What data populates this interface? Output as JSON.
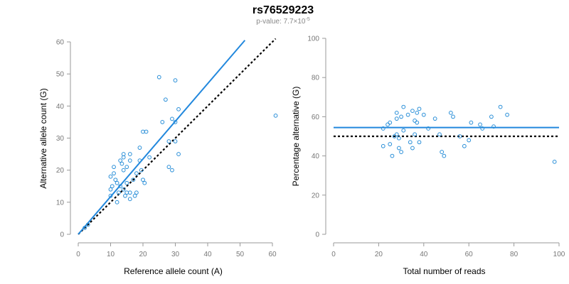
{
  "title": "rs76529223",
  "subtitle": {
    "prefix": "p-value: 7.7×10",
    "exponent": "-5"
  },
  "colors": {
    "points": "#2a8fd8",
    "fit_line": "#2288dd",
    "reference_line": "#000000",
    "axis": "#999999",
    "tick_text": "#777777"
  },
  "chart_data": [
    {
      "type": "scatter",
      "xlabel": "Reference allele count (A)",
      "ylabel": "Alternative allele count (G)",
      "xlim": [
        0,
        60
      ],
      "ylim": [
        0,
        60
      ],
      "xticks": [
        0,
        10,
        20,
        30,
        40,
        50,
        60
      ],
      "yticks": [
        0,
        10,
        20,
        30,
        40,
        50,
        60
      ],
      "grid": false,
      "points": [
        [
          2,
          2
        ],
        [
          3,
          3
        ],
        [
          10,
          12
        ],
        [
          10,
          14
        ],
        [
          10,
          18
        ],
        [
          10.5,
          15
        ],
        [
          11,
          21
        ],
        [
          11,
          19
        ],
        [
          11.5,
          17
        ],
        [
          12,
          10
        ],
        [
          12,
          16
        ],
        [
          12.5,
          13
        ],
        [
          13,
          23
        ],
        [
          13,
          15
        ],
        [
          13.5,
          22
        ],
        [
          14,
          25
        ],
        [
          14,
          24
        ],
        [
          14,
          20
        ],
        [
          14,
          14
        ],
        [
          14.5,
          12
        ],
        [
          15,
          21
        ],
        [
          15,
          16
        ],
        [
          15,
          13
        ],
        [
          16,
          25
        ],
        [
          16,
          23
        ],
        [
          16,
          11
        ],
        [
          16,
          13
        ],
        [
          17,
          17
        ],
        [
          17.5,
          12
        ],
        [
          18,
          13
        ],
        [
          18,
          19
        ],
        [
          19,
          27
        ],
        [
          19,
          23
        ],
        [
          19.5,
          20
        ],
        [
          20,
          32
        ],
        [
          20,
          17
        ],
        [
          20.5,
          16
        ],
        [
          21,
          32
        ],
        [
          22,
          24
        ],
        [
          25,
          49
        ],
        [
          26,
          35
        ],
        [
          27,
          42
        ],
        [
          28,
          29
        ],
        [
          28,
          21
        ],
        [
          29,
          36
        ],
        [
          29,
          20
        ],
        [
          30,
          48
        ],
        [
          30,
          35
        ],
        [
          30,
          29
        ],
        [
          31,
          39
        ],
        [
          31,
          25
        ],
        [
          61,
          37
        ]
      ],
      "fit_line": {
        "x": [
          0,
          51.5
        ],
        "y": [
          0,
          60.5
        ]
      },
      "reference_line": {
        "x": [
          0,
          61
        ],
        "y": [
          0,
          61
        ]
      }
    },
    {
      "type": "scatter",
      "xlabel": "Total number of reads",
      "ylabel": "Percentage alternative (G)",
      "xlim": [
        0,
        100
      ],
      "ylim": [
        0,
        100
      ],
      "xticks": [
        0,
        20,
        40,
        60,
        80,
        100
      ],
      "yticks": [
        0,
        20,
        40,
        60,
        80,
        100
      ],
      "grid": false,
      "points": [
        [
          22,
          45
        ],
        [
          22,
          54
        ],
        [
          24,
          56
        ],
        [
          25,
          57
        ],
        [
          25,
          46
        ],
        [
          26,
          40
        ],
        [
          27,
          50
        ],
        [
          28,
          62
        ],
        [
          28,
          59
        ],
        [
          28,
          51
        ],
        [
          29,
          44
        ],
        [
          29,
          49
        ],
        [
          30,
          60
        ],
        [
          30,
          42
        ],
        [
          31,
          65
        ],
        [
          31,
          53
        ],
        [
          33,
          61
        ],
        [
          34,
          47
        ],
        [
          35,
          63
        ],
        [
          35,
          44
        ],
        [
          36,
          58
        ],
        [
          36,
          51
        ],
        [
          37,
          62
        ],
        [
          37,
          57
        ],
        [
          38,
          64
        ],
        [
          38,
          47
        ],
        [
          40,
          61
        ],
        [
          42,
          54
        ],
        [
          45,
          59
        ],
        [
          47,
          51
        ],
        [
          48,
          42
        ],
        [
          49,
          40
        ],
        [
          52,
          62
        ],
        [
          53,
          60
        ],
        [
          56,
          50
        ],
        [
          58,
          45
        ],
        [
          60,
          48
        ],
        [
          61,
          57
        ],
        [
          65,
          56
        ],
        [
          66,
          54
        ],
        [
          70,
          60
        ],
        [
          71,
          55
        ],
        [
          74,
          65
        ],
        [
          77,
          61
        ],
        [
          98,
          37
        ]
      ],
      "fit_line": {
        "x": [
          0,
          100
        ],
        "y": [
          54.5,
          54.5
        ]
      },
      "reference_line": {
        "x": [
          0,
          100
        ],
        "y": [
          50,
          50
        ]
      }
    }
  ]
}
